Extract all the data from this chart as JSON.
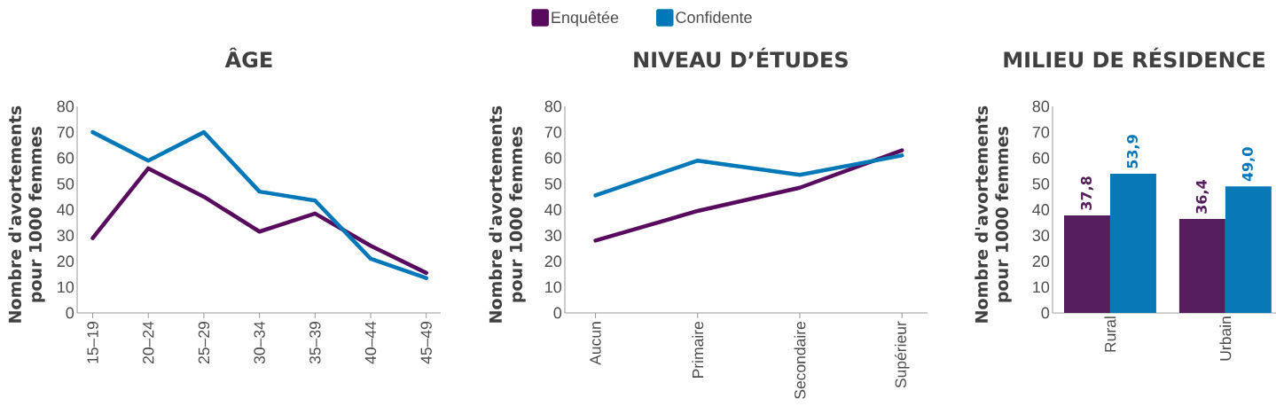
{
  "chart_data": [
    {
      "type": "line",
      "title": "ÂGE",
      "ylabel": "Nombre d'avortements pour 1000 femmes",
      "categories": [
        "15–19",
        "20–24",
        "25–29",
        "30–34",
        "35–39",
        "40–44",
        "45–49"
      ],
      "series": [
        {
          "color": "#580a5e",
          "values": [
            29,
            56,
            45,
            31.5,
            38.5,
            26,
            15.5
          ]
        },
        {
          "color": "#0078b8",
          "values": [
            70,
            59,
            70,
            47,
            43.5,
            21,
            13.5
          ]
        }
      ],
      "ylim": [
        0,
        80
      ],
      "yticks": [
        0,
        10,
        20,
        30,
        40,
        50,
        60,
        70,
        80
      ]
    },
    {
      "type": "line",
      "title": "NIVEAU D’ÉTUDES",
      "ylabel": "Nombre d'avortements pour 1000 femmes",
      "categories": [
        "Aucun",
        "Primaire",
        "Secondaire",
        "Supérieur"
      ],
      "series": [
        {
          "name": "Enquêtée",
          "color": "#580a5e",
          "values": [
            28,
            39.5,
            48.5,
            63
          ]
        },
        {
          "name": "Confidente",
          "color": "#0078b8",
          "values": [
            45.5,
            59,
            53.5,
            61
          ]
        }
      ],
      "ylim": [
        0,
        80
      ],
      "yticks": [
        0,
        10,
        20,
        30,
        40,
        50,
        60,
        70,
        80
      ],
      "legend": "top"
    },
    {
      "type": "bar",
      "title": "MILIEU DE RÉSIDENCE",
      "ylabel": "Nombre d'avortements pour 1000 femmes",
      "categories": [
        "Rural",
        "Urbain"
      ],
      "series": [
        {
          "color": "#561e5c",
          "values": [
            37.8,
            36.4
          ],
          "value_labels": [
            "37,8",
            "36,4"
          ]
        },
        {
          "color": "#0878b6",
          "values": [
            53.9,
            49.0
          ],
          "value_labels": [
            "53,9",
            "49,0"
          ]
        }
      ],
      "ylim": [
        0,
        80
      ],
      "yticks": [
        0,
        10,
        20,
        30,
        40,
        50,
        60,
        70,
        80
      ]
    }
  ]
}
